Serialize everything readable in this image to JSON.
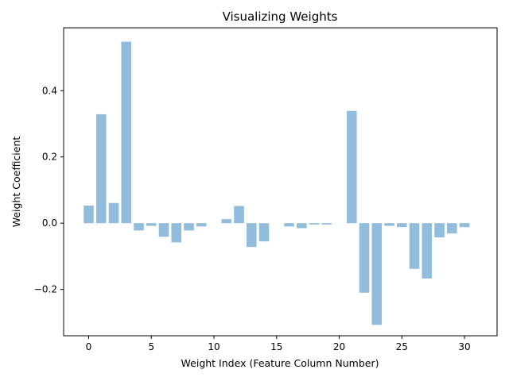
{
  "chart_data": {
    "type": "bar",
    "title": "Visualizing Weights",
    "xlabel": "Weight Index (Feature Column Number)",
    "ylabel": "Weight Coefficient",
    "xlim": [
      -2,
      32.6
    ],
    "ylim": [
      -0.34,
      0.59
    ],
    "xticks": [
      0,
      5,
      10,
      15,
      20,
      25,
      30
    ],
    "yticks": [
      -0.2,
      0.0,
      0.2,
      0.4
    ],
    "ytick_labels": [
      "−0.2",
      "0.0",
      "0.2",
      "0.4"
    ],
    "grid": false,
    "legend": "none",
    "bar_color": "#91bcdc",
    "x": [
      0,
      1,
      2,
      3,
      4,
      5,
      6,
      7,
      8,
      9,
      10,
      11,
      12,
      13,
      14,
      15,
      16,
      17,
      18,
      19,
      20,
      21,
      22,
      23,
      24,
      25,
      26,
      27,
      28,
      29,
      30,
      31
    ],
    "values": [
      0.053,
      0.329,
      0.061,
      0.548,
      -0.022,
      -0.008,
      -0.041,
      -0.058,
      -0.022,
      -0.01,
      0.0,
      0.012,
      0.052,
      -0.072,
      -0.055,
      0.0,
      -0.01,
      -0.015,
      -0.004,
      -0.004,
      0.0,
      0.339,
      -0.21,
      -0.307,
      -0.008,
      -0.012,
      -0.138,
      -0.167,
      -0.043,
      -0.031,
      -0.012,
      0.0
    ]
  }
}
